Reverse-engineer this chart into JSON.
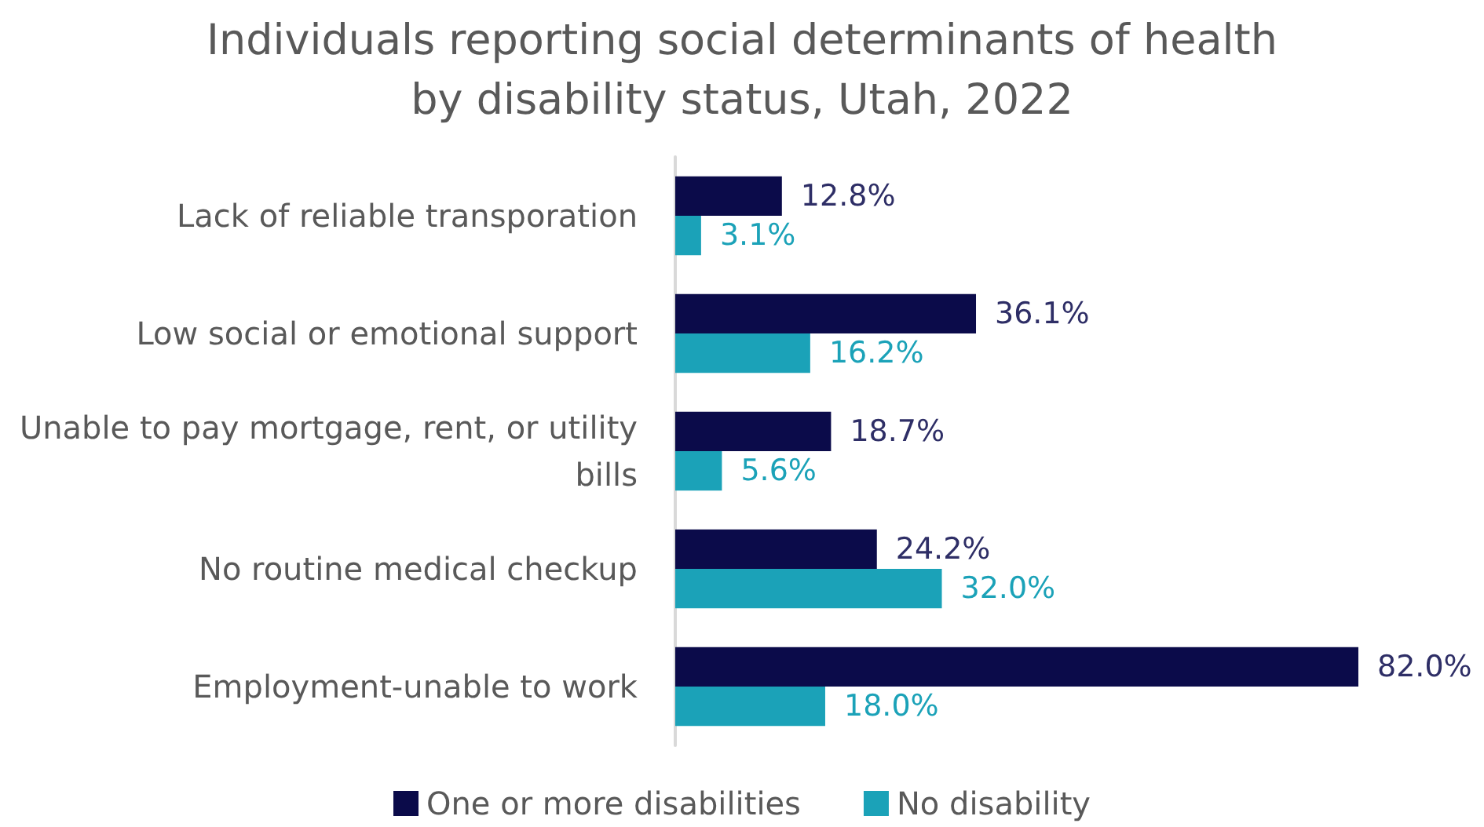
{
  "chart_data": {
    "type": "bar",
    "orientation": "horizontal",
    "title": "Individuals reporting social determinants of health\nby disability status, Utah, 2022",
    "categories": [
      "Lack of reliable transporation",
      "Low social or emotional support",
      "Unable to pay mortgage, rent, or utility bills",
      "No routine medical checkup",
      "Employment-unable to work"
    ],
    "series": [
      {
        "name": "One or more disabilities",
        "color": "#0b0b4a",
        "values": [
          12.8,
          36.1,
          18.7,
          24.2,
          82.0
        ],
        "value_labels": [
          "12.8%",
          "36.1%",
          "18.7%",
          "24.2%",
          "82.0%"
        ]
      },
      {
        "name": "No disability",
        "color": "#1ba2b8",
        "values": [
          3.1,
          16.2,
          5.6,
          32.0,
          18.0
        ],
        "value_labels": [
          "3.1%",
          "16.2%",
          "5.6%",
          "32.0%",
          "18.0%"
        ]
      }
    ],
    "legend": "bottom"
  }
}
